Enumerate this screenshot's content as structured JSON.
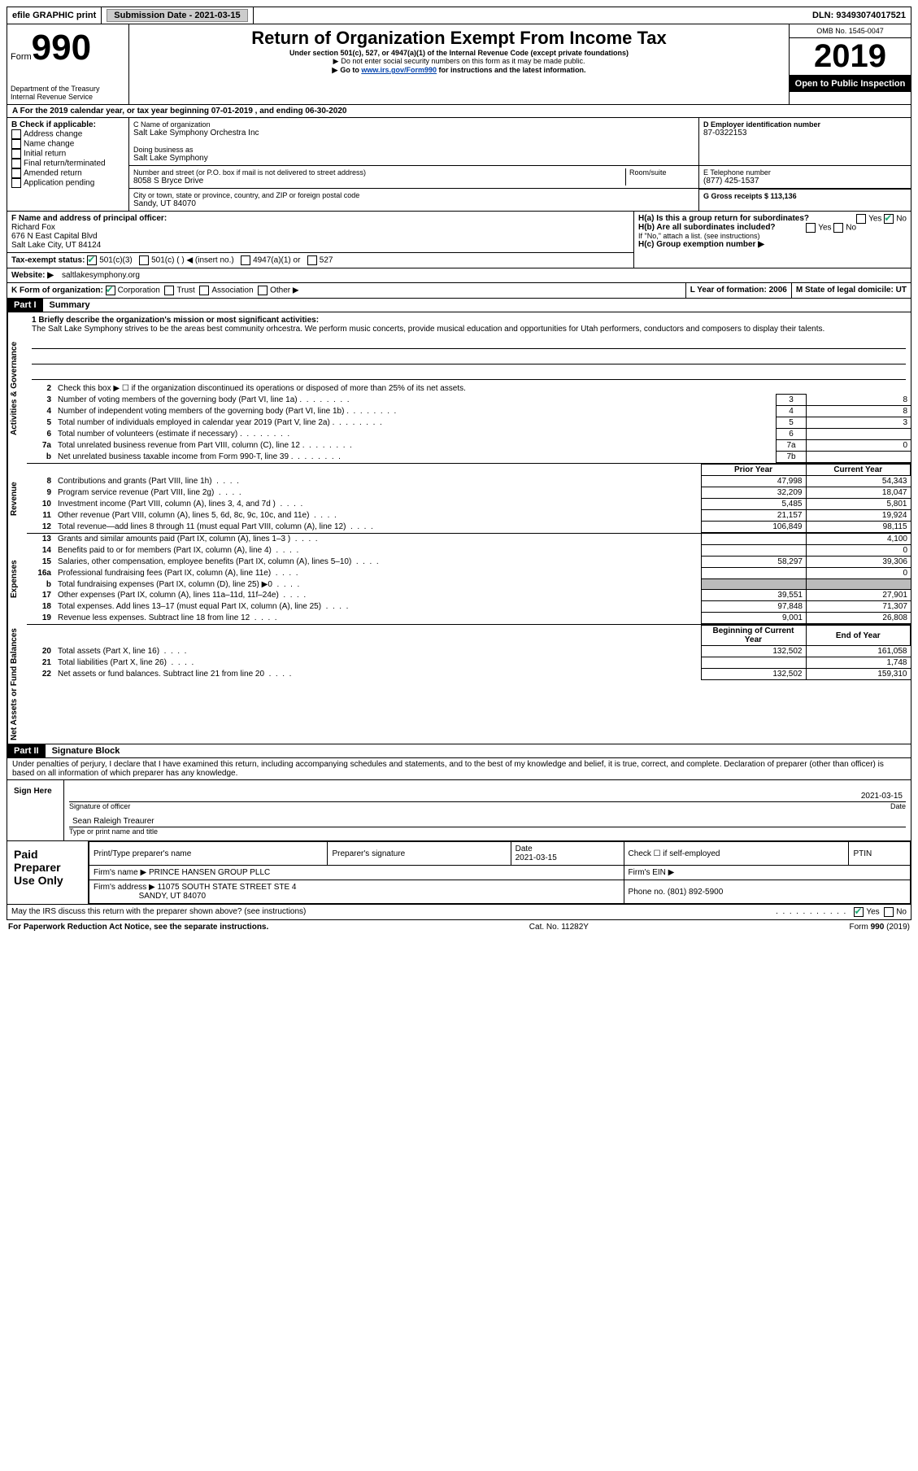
{
  "header": {
    "efile": "efile GRAPHIC print",
    "submission_label": "Submission Date - 2021-03-15",
    "dln": "DLN: 93493074017521"
  },
  "top": {
    "form": "Form",
    "form_num": "990",
    "dept": "Department of the Treasury\nInternal Revenue Service",
    "title": "Return of Organization Exempt From Income Tax",
    "subtitle": "Under section 501(c), 527, or 4947(a)(1) of the Internal Revenue Code (except private foundations)",
    "note1": "Do not enter social security numbers on this form as it may be made public.",
    "note2_prefix": "Go to ",
    "note2_link": "www.irs.gov/Form990",
    "note2_suffix": " for instructions and the latest information.",
    "omb": "OMB No. 1545-0047",
    "year": "2019",
    "open": "Open to Public Inspection"
  },
  "sectionA": "For the 2019 calendar year, or tax year beginning 07-01-2019    , and ending 06-30-2020",
  "boxB": {
    "label": "B Check if applicable:",
    "items": [
      "Address change",
      "Name change",
      "Initial return",
      "Final return/terminated",
      "Amended return",
      "Application pending"
    ]
  },
  "boxC": {
    "label": "C Name of organization",
    "name": "Salt Lake Symphony Orchestra Inc",
    "dba_label": "Doing business as",
    "dba": "Salt Lake Symphony",
    "addr_label": "Number and street (or P.O. box if mail is not delivered to street address)",
    "room_label": "Room/suite",
    "addr": "8058 S Bryce Drive",
    "city_label": "City or town, state or province, country, and ZIP or foreign postal code",
    "city": "Sandy, UT  84070"
  },
  "boxD": {
    "label": "D Employer identification number",
    "val": "87-0322153"
  },
  "boxE": {
    "label": "E Telephone number",
    "val": "(877) 425-1537"
  },
  "boxG": {
    "label": "G Gross receipts $ 113,136"
  },
  "boxF": {
    "label": "F  Name and address of principal officer:",
    "name": "Richard Fox",
    "addr1": "676 N East Capital Blvd",
    "addr2": "Salt Lake City, UT  84124"
  },
  "boxH": {
    "a": "H(a)  Is this a group return for subordinates?",
    "b": "H(b)  Are all subordinates included?",
    "b_note": "If \"No,\" attach a list. (see instructions)",
    "c": "H(c)  Group exemption number ▶",
    "yes": "Yes",
    "no": "No"
  },
  "boxI": {
    "label": "Tax-exempt status:",
    "opts": [
      "501(c)(3)",
      "501(c) (   ) ◀ (insert no.)",
      "4947(a)(1) or",
      "527"
    ]
  },
  "boxJ": {
    "label": "Website: ▶",
    "val": "saltlakesymphony.org"
  },
  "boxK": {
    "label": "K Form of organization:",
    "opts": [
      "Corporation",
      "Trust",
      "Association",
      "Other ▶"
    ]
  },
  "boxL": {
    "label": "L Year of formation: 2006"
  },
  "boxM": {
    "label": "M State of legal domicile: UT"
  },
  "part1": {
    "header": "Part I",
    "title": "Summary",
    "mission_label": "1  Briefly describe the organization's mission or most significant activities:",
    "mission": "The Salt Lake Symphony strives to be the areas best community orhcestra. We perform music concerts, provide musical education and opportunities for Utah performers, conductors and composers to display their talents.",
    "line2": "Check this box ▶ ☐  if the organization discontinued its operations or disposed of more than 25% of its net assets.",
    "headers": {
      "prior": "Prior Year",
      "current": "Current Year",
      "boc": "Beginning of Current Year",
      "eoy": "End of Year"
    },
    "gov_lines": [
      {
        "n": "3",
        "t": "Number of voting members of the governing body (Part VI, line 1a)",
        "box": "3",
        "v": "8"
      },
      {
        "n": "4",
        "t": "Number of independent voting members of the governing body (Part VI, line 1b)",
        "box": "4",
        "v": "8"
      },
      {
        "n": "5",
        "t": "Total number of individuals employed in calendar year 2019 (Part V, line 2a)",
        "box": "5",
        "v": "3"
      },
      {
        "n": "6",
        "t": "Total number of volunteers (estimate if necessary)",
        "box": "6",
        "v": ""
      },
      {
        "n": "7a",
        "t": "Total unrelated business revenue from Part VIII, column (C), line 12",
        "box": "7a",
        "v": "0"
      },
      {
        "n": "b",
        "t": "Net unrelated business taxable income from Form 990-T, line 39",
        "box": "7b",
        "v": ""
      }
    ],
    "rev_lines": [
      {
        "n": "8",
        "t": "Contributions and grants (Part VIII, line 1h)",
        "p": "47,998",
        "c": "54,343"
      },
      {
        "n": "9",
        "t": "Program service revenue (Part VIII, line 2g)",
        "p": "32,209",
        "c": "18,047"
      },
      {
        "n": "10",
        "t": "Investment income (Part VIII, column (A), lines 3, 4, and 7d )",
        "p": "5,485",
        "c": "5,801"
      },
      {
        "n": "11",
        "t": "Other revenue (Part VIII, column (A), lines 5, 6d, 8c, 9c, 10c, and 11e)",
        "p": "21,157",
        "c": "19,924"
      },
      {
        "n": "12",
        "t": "Total revenue—add lines 8 through 11 (must equal Part VIII, column (A), line 12)",
        "p": "106,849",
        "c": "98,115"
      }
    ],
    "exp_lines": [
      {
        "n": "13",
        "t": "Grants and similar amounts paid (Part IX, column (A), lines 1–3 )",
        "p": "",
        "c": "4,100"
      },
      {
        "n": "14",
        "t": "Benefits paid to or for members (Part IX, column (A), line 4)",
        "p": "",
        "c": "0"
      },
      {
        "n": "15",
        "t": "Salaries, other compensation, employee benefits (Part IX, column (A), lines 5–10)",
        "p": "58,297",
        "c": "39,306"
      },
      {
        "n": "16a",
        "t": "Professional fundraising fees (Part IX, column (A), line 11e)",
        "p": "",
        "c": "0"
      },
      {
        "n": "b",
        "t": "Total fundraising expenses (Part IX, column (D), line 25) ▶0",
        "p": "shaded",
        "c": "shaded"
      },
      {
        "n": "17",
        "t": "Other expenses (Part IX, column (A), lines 11a–11d, 11f–24e)",
        "p": "39,551",
        "c": "27,901"
      },
      {
        "n": "18",
        "t": "Total expenses. Add lines 13–17 (must equal Part IX, column (A), line 25)",
        "p": "97,848",
        "c": "71,307"
      },
      {
        "n": "19",
        "t": "Revenue less expenses. Subtract line 18 from line 12",
        "p": "9,001",
        "c": "26,808"
      }
    ],
    "net_lines": [
      {
        "n": "20",
        "t": "Total assets (Part X, line 16)",
        "p": "132,502",
        "c": "161,058"
      },
      {
        "n": "21",
        "t": "Total liabilities (Part X, line 26)",
        "p": "",
        "c": "1,748"
      },
      {
        "n": "22",
        "t": "Net assets or fund balances. Subtract line 21 from line 20",
        "p": "132,502",
        "c": "159,310"
      }
    ],
    "labels": {
      "gov": "Activities & Governance",
      "rev": "Revenue",
      "exp": "Expenses",
      "net": "Net Assets or Fund Balances"
    }
  },
  "part2": {
    "header": "Part II",
    "title": "Signature Block",
    "decl": "Under penalties of perjury, I declare that I have examined this return, including accompanying schedules and statements, and to the best of my knowledge and belief, it is true, correct, and complete. Declaration of preparer (other than officer) is based on all information of which preparer has any knowledge.",
    "sign_here": "Sign Here",
    "sig_officer": "Signature of officer",
    "date": "Date",
    "date_val": "2021-03-15",
    "name_title": "Sean Raleigh  Treaurer",
    "type_name": "Type or print name and title",
    "paid": "Paid Preparer Use Only",
    "prep_name_h": "Print/Type preparer's name",
    "prep_sig_h": "Preparer's signature",
    "date_h": "Date",
    "date2": "2021-03-15",
    "self_emp": "Check ☐ if self-employed",
    "ptin": "PTIN",
    "firm_name_l": "Firm's name    ▶",
    "firm_name": "PRINCE HANSEN GROUP PLLC",
    "firm_ein": "Firm's EIN ▶",
    "firm_addr_l": "Firm's address ▶",
    "firm_addr1": "11075 SOUTH STATE STREET STE 4",
    "firm_addr2": "SANDY, UT  84070",
    "phone_l": "Phone no. (801) 892-5900",
    "discuss": "May the IRS discuss this return with the preparer shown above? (see instructions)",
    "yes": "Yes",
    "no": "No"
  },
  "footer": {
    "paperwork": "For Paperwork Reduction Act Notice, see the separate instructions.",
    "cat": "Cat. No. 11282Y",
    "form": "Form 990 (2019)"
  }
}
